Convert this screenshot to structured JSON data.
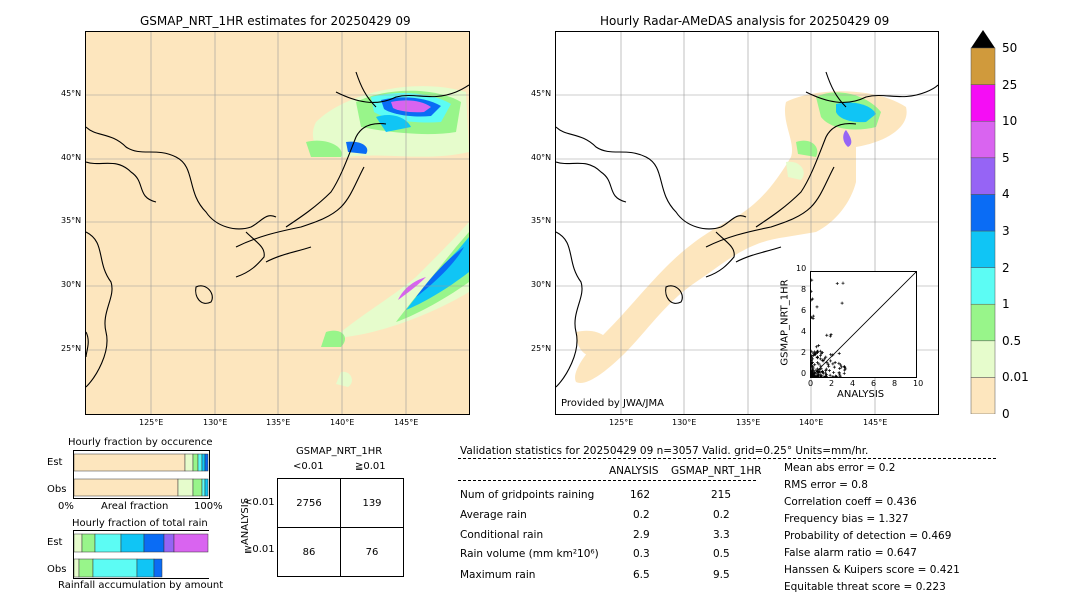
{
  "left_map": {
    "title": "GSMAP_NRT_1HR estimates for 20250429 09",
    "lat_labels": [
      "45°N",
      "40°N",
      "35°N",
      "30°N",
      "25°N"
    ],
    "lon_labels": [
      "125°E",
      "130°E",
      "135°E",
      "140°E",
      "145°E"
    ]
  },
  "right_map": {
    "title": "Hourly Radar-AMeDAS analysis for 20250429 09",
    "lat_labels": [
      "45°N",
      "40°N",
      "35°N",
      "30°N",
      "25°N"
    ],
    "lon_labels": [
      "125°E",
      "130°E",
      "135°E",
      "140°E",
      "145°E"
    ],
    "credit": "Provided by JWA/JMA"
  },
  "colorbar": {
    "labels": [
      "0",
      "0.01",
      "0.5",
      "1",
      "2",
      "3",
      "4",
      "5",
      "10",
      "25",
      "50"
    ],
    "colors": [
      "#fde6be",
      "#e6fccc",
      "#98f58a",
      "#5cfcf4",
      "#10c5f5",
      "#0a6cf5",
      "#9664f5",
      "#d964f0",
      "#f50df5",
      "#d09a3c"
    ]
  },
  "scatter": {
    "xlabel": "ANALYSIS",
    "ylabel": "GSMAP_NRT_1HR",
    "ticks": [
      "0",
      "2",
      "4",
      "6",
      "8",
      "10"
    ]
  },
  "fraction_occurrence": {
    "title": "Hourly fraction by occurence",
    "row_est": "Est",
    "row_obs": "Obs",
    "axis_left": "0%",
    "axis_mid": "Areal fraction",
    "axis_right": "100%"
  },
  "fraction_total": {
    "title": "Hourly fraction of total rain",
    "row_est": "Est",
    "row_obs": "Obs",
    "footer": "Rainfall accumulation by amount"
  },
  "contingency": {
    "title": "GSMAP_NRT_1HR",
    "col1": "<0.01",
    "col2": "≧0.01",
    "ylabel": "ANALYSIS",
    "row1": "<0.01",
    "row2": "≧0.01",
    "cells": [
      "2756",
      "139",
      "86",
      "76"
    ]
  },
  "validation": {
    "header": "Validation statistics for 20250429 09  n=3057 Valid. grid=0.25° Units=mm/hr.",
    "col_analysis": "ANALYSIS",
    "col_gsmap": "GSMAP_NRT_1HR",
    "rows": [
      {
        "label": "Num of gridpoints raining",
        "a": "162",
        "g": "215"
      },
      {
        "label": "Average rain",
        "a": "0.2",
        "g": "0.2"
      },
      {
        "label": "Conditional rain",
        "a": "2.9",
        "g": "3.3"
      },
      {
        "label": "Rain volume (mm km²10⁶)",
        "a": "0.3",
        "g": "0.5"
      },
      {
        "label": "Maximum rain",
        "a": "6.5",
        "g": "9.5"
      }
    ],
    "scores": [
      "Mean abs error =    0.2",
      "RMS error =    0.8",
      "Correlation coeff =  0.436",
      "Frequency bias =  1.327",
      "Probability of detection =  0.469",
      "False alarm ratio =  0.647",
      "Hanssen & Kuipers score =  0.421",
      "Equitable threat score =  0.223"
    ]
  }
}
